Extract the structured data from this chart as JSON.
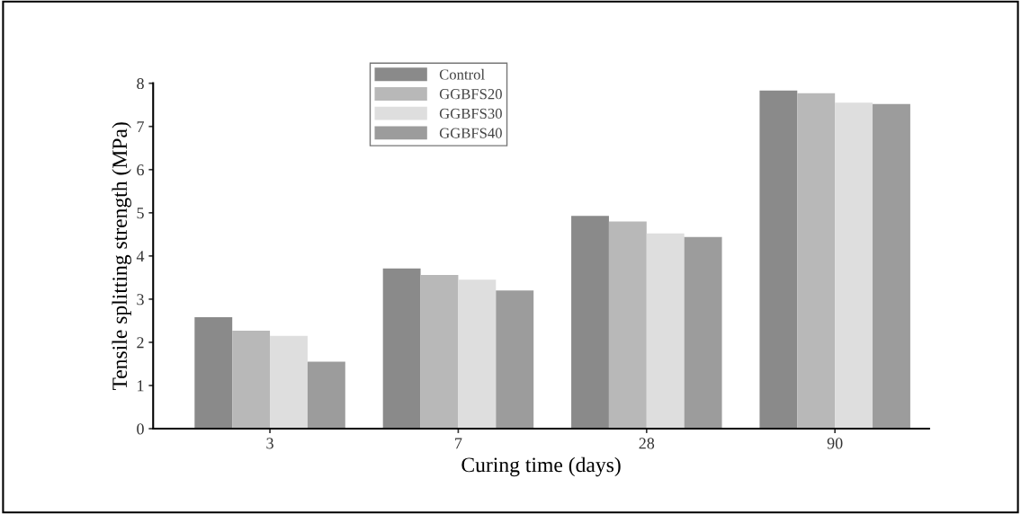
{
  "chart_data": {
    "type": "bar",
    "xlabel": "Curing time (days)",
    "ylabel": "Tensile splitting strength (MPa)",
    "categories": [
      "3",
      "7",
      "28",
      "90"
    ],
    "series": [
      {
        "name": "Control",
        "color": "#8a8a8a",
        "values": [
          2.58,
          3.71,
          4.93,
          7.83
        ]
      },
      {
        "name": "GGBFS20",
        "color": "#b8b8b8",
        "values": [
          2.27,
          3.56,
          4.8,
          7.77
        ]
      },
      {
        "name": "GGBFS30",
        "color": "#dedede",
        "values": [
          2.15,
          3.45,
          4.52,
          7.55
        ]
      },
      {
        "name": "GGBFS40",
        "color": "#9c9c9c",
        "values": [
          1.55,
          3.2,
          4.44,
          7.52
        ]
      }
    ],
    "ylim": [
      0,
      8
    ],
    "yticks": [
      0,
      1,
      2,
      3,
      4,
      5,
      6,
      7,
      8
    ],
    "grid": false,
    "legend": "top left"
  }
}
